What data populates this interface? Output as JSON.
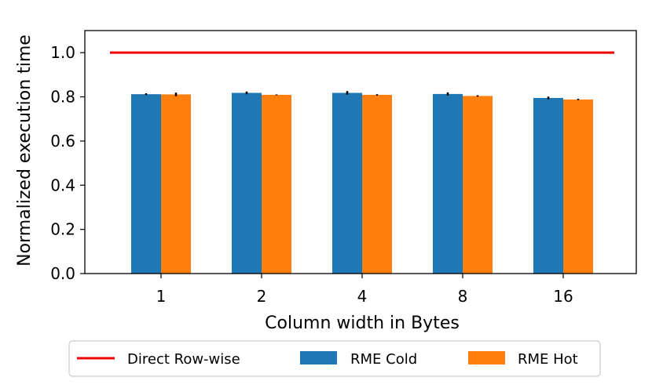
{
  "chart_data": {
    "type": "bar",
    "categories": [
      "1",
      "2",
      "4",
      "8",
      "16"
    ],
    "xlabel": "Column width in Bytes",
    "ylabel": "Normalized execution time",
    "ylim": [
      0,
      1.1
    ],
    "yticks": [
      "0.0",
      "0.2",
      "0.4",
      "0.6",
      "0.8",
      "1.0"
    ],
    "grid": false,
    "legend_position": "bottom-outside",
    "series": [
      {
        "name": "RME Cold",
        "color": "#1f77b4",
        "values": [
          0.812,
          0.818,
          0.818,
          0.813,
          0.795
        ],
        "errors": [
          0.004,
          0.006,
          0.008,
          0.007,
          0.006
        ]
      },
      {
        "name": "RME Hot",
        "color": "#ff7f0e",
        "values": [
          0.811,
          0.809,
          0.809,
          0.804,
          0.788
        ],
        "errors": [
          0.008,
          0.002,
          0.003,
          0.003,
          0.003
        ]
      }
    ],
    "reference_line": {
      "name": "Direct Row-wise",
      "value": 1.0,
      "color": "#ee0000"
    }
  }
}
